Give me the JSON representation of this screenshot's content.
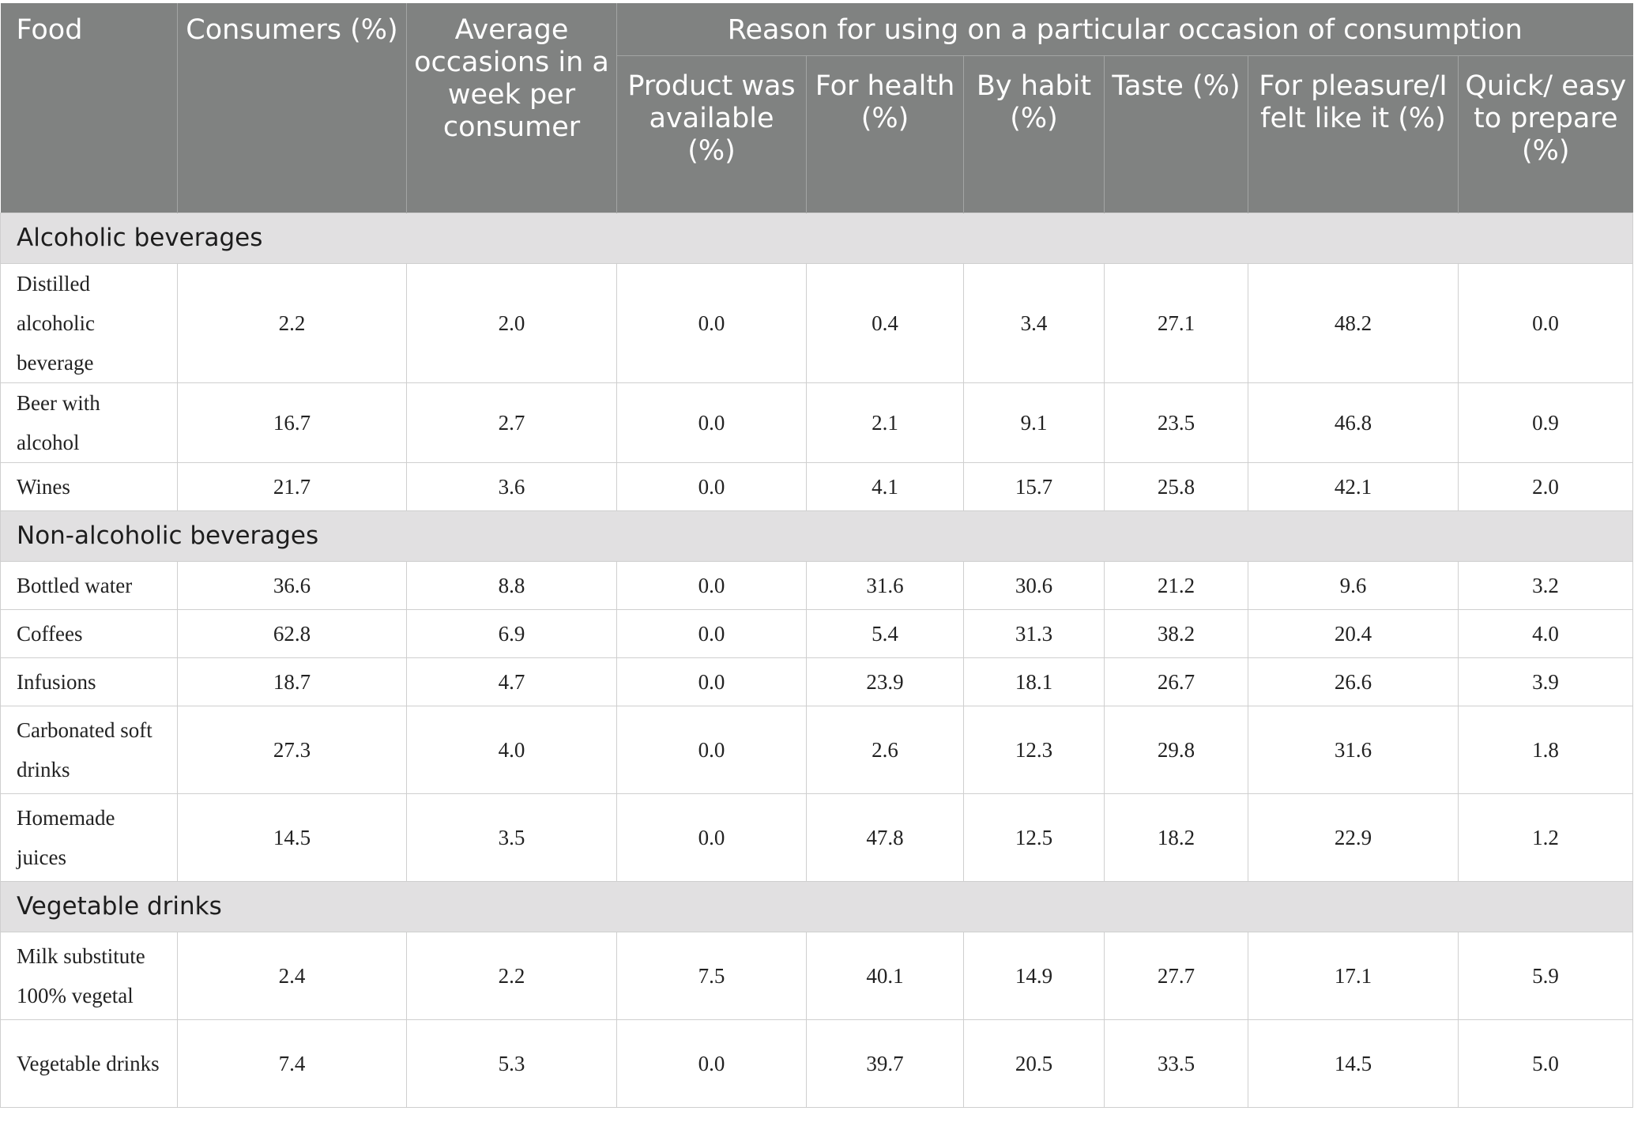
{
  "headers": {
    "food": "Food",
    "consumers": "Consumers (%)",
    "avg_occasions": "Average occasions in a week per consumer",
    "reason_group": "Reason for using on a particular occasion of consumption",
    "product_available": "Product was available (%)",
    "for_health": "For health (%)",
    "by_habit": "By habit (%)",
    "taste": "Taste (%)",
    "for_pleasure": "For pleasure/I felt like it (%)",
    "quick_easy": "Quick/ easy to prepare (%)"
  },
  "sections": [
    {
      "category": "Alcoholic beverages",
      "rows": [
        {
          "food": "Distilled alcoholic beverage",
          "values": [
            "2.2",
            "2.0",
            "0.0",
            "0.4",
            "3.4",
            "27.1",
            "48.2",
            "0.0"
          ]
        },
        {
          "food": "Beer with alcohol",
          "values": [
            "16.7",
            "2.7",
            "0.0",
            "2.1",
            "9.1",
            "23.5",
            "46.8",
            "0.9"
          ]
        },
        {
          "food": "Wines",
          "values": [
            "21.7",
            "3.6",
            "0.0",
            "4.1",
            "15.7",
            "25.8",
            "42.1",
            "2.0"
          ]
        }
      ]
    },
    {
      "category": "Non-alcoholic beverages",
      "rows": [
        {
          "food": "Bottled water",
          "values": [
            "36.6",
            "8.8",
            "0.0",
            "31.6",
            "30.6",
            "21.2",
            "9.6",
            "3.2"
          ]
        },
        {
          "food": "Coffees",
          "values": [
            "62.8",
            "6.9",
            "0.0",
            "5.4",
            "31.3",
            "38.2",
            "20.4",
            "4.0"
          ]
        },
        {
          "food": "Infusions",
          "values": [
            "18.7",
            "4.7",
            "0.0",
            "23.9",
            "18.1",
            "26.7",
            "26.6",
            "3.9"
          ]
        },
        {
          "food": "Carbonated soft drinks",
          "values": [
            "27.3",
            "4.0",
            "0.0",
            "2.6",
            "12.3",
            "29.8",
            "31.6",
            "1.8"
          ]
        },
        {
          "food": "Homemade juices",
          "values": [
            "14.5",
            "3.5",
            "0.0",
            "47.8",
            "12.5",
            "18.2",
            "22.9",
            "1.2"
          ]
        }
      ]
    },
    {
      "category": "Vegetable drinks",
      "rows": [
        {
          "food": "Milk substitute 100% vegetal",
          "values": [
            "2.4",
            "2.2",
            "7.5",
            "40.1",
            "14.9",
            "27.7",
            "17.1",
            "5.9"
          ]
        },
        {
          "food": "Vegetable drinks",
          "values": [
            "7.4",
            "5.3",
            "0.0",
            "39.7",
            "20.5",
            "33.5",
            "14.5",
            "5.0"
          ]
        }
      ]
    }
  ]
}
